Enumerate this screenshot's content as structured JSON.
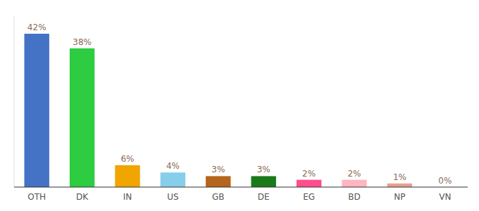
{
  "chart_data": {
    "type": "bar",
    "categories": [
      "OTH",
      "DK",
      "IN",
      "US",
      "GB",
      "DE",
      "EG",
      "BD",
      "NP",
      "VN"
    ],
    "values": [
      42,
      38,
      6,
      4,
      3,
      3,
      2,
      2,
      1,
      0
    ],
    "value_labels": [
      "42%",
      "38%",
      "6%",
      "4%",
      "3%",
      "3%",
      "2%",
      "2%",
      "1%",
      "0%"
    ],
    "colors": [
      "#4472c4",
      "#2ecc40",
      "#f0a500",
      "#87ceeb",
      "#b5651d",
      "#1a7a1a",
      "#ff4d8d",
      "#ffb6c1",
      "#e8a090",
      "#ffffff"
    ],
    "ylim": [
      0,
      47
    ],
    "data_labels": true,
    "tick_labels": "x",
    "grid": false
  }
}
